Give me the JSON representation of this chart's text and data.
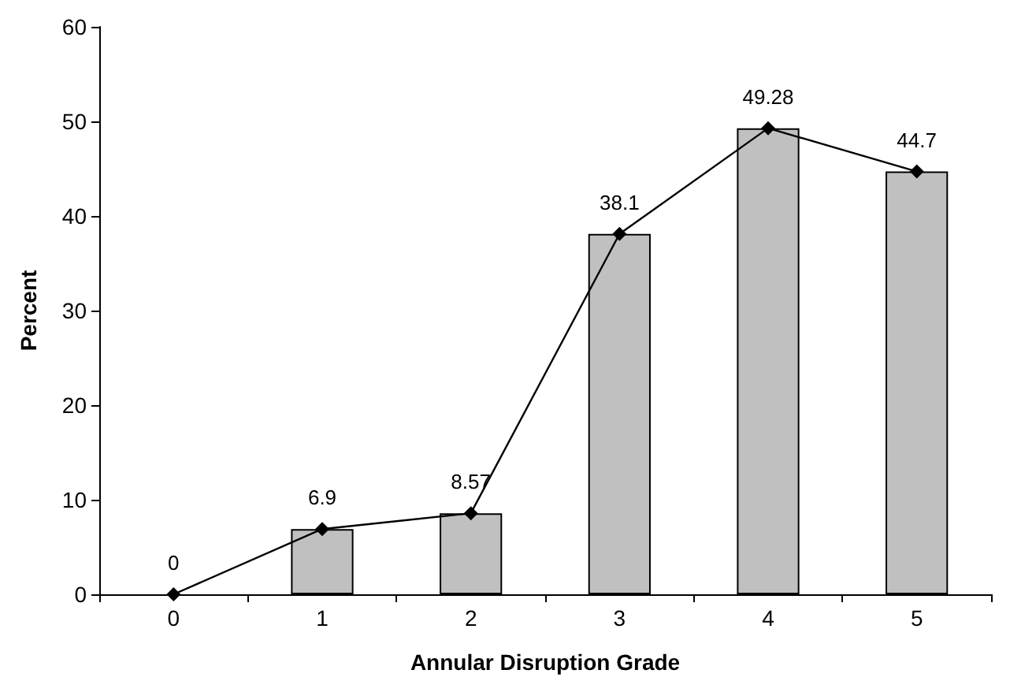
{
  "chart_data": {
    "type": "bar",
    "xlabel": "Annular Disruption Grade",
    "ylabel": "Percent",
    "categories": [
      "0",
      "1",
      "2",
      "3",
      "4",
      "5"
    ],
    "series": [
      {
        "color": "#c0c0c0",
        "values": [
          0,
          6.9,
          8.57,
          38.1,
          49.28,
          44.7
        ]
      },
      {
        "type": "line",
        "color": "#000000",
        "values": [
          0,
          6.9,
          8.57,
          38.1,
          49.28,
          44.7
        ],
        "value_labels": [
          "0",
          "6.9",
          "8.57",
          "38.1",
          "49.28",
          "44.7"
        ],
        "marker": "diamond",
        "line_style": "solid"
      }
    ],
    "ylim": [
      0,
      60
    ],
    "yticks": [
      0,
      10,
      20,
      30,
      40,
      50,
      60
    ],
    "grid": false
  }
}
